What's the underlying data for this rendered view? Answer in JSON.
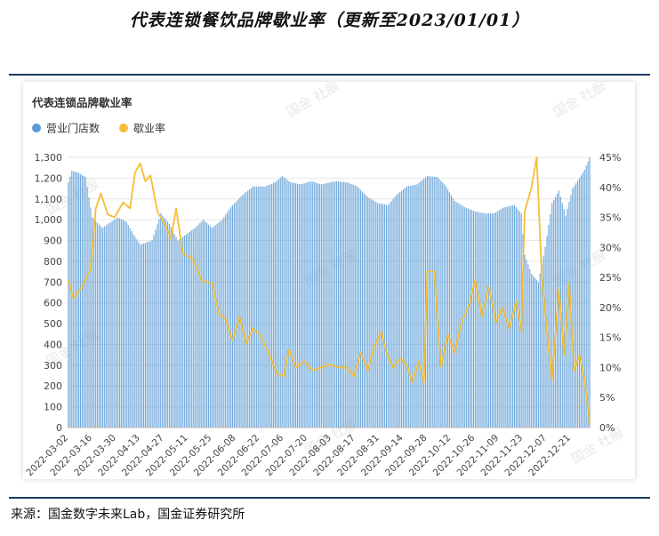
{
  "page": {
    "title": "代表连锁餐饮品牌歇业率（更新至2023/01/01）",
    "source": "来源：国金数字未来Lab，国金证券研究所",
    "watermark": "国金 社服"
  },
  "chart_data": {
    "type": "bar+line",
    "title": "代表连锁品牌歇业率",
    "legend_position": "top-left",
    "grid": true,
    "x": [
      "2022-03-02",
      "2022-03-03",
      "2022-03-04",
      "2022-03-05",
      "2022-03-06",
      "2022-03-07",
      "2022-03-08",
      "2022-03-09",
      "2022-03-10",
      "2022-03-11",
      "2022-03-12",
      "2022-03-13",
      "2022-03-14",
      "2022-03-15",
      "2022-03-16",
      "2022-03-17",
      "2022-03-18",
      "2022-03-19",
      "2022-03-20",
      "2022-03-21",
      "2022-03-22",
      "2022-03-23",
      "2022-03-24",
      "2022-03-25",
      "2022-03-26",
      "2022-03-27",
      "2022-03-28",
      "2022-03-29",
      "2022-03-30",
      "2022-03-31",
      "2022-04-01",
      "2022-04-02",
      "2022-04-03",
      "2022-04-04",
      "2022-04-05",
      "2022-04-06",
      "2022-04-07",
      "2022-04-08",
      "2022-04-09",
      "2022-04-10",
      "2022-04-11",
      "2022-04-12",
      "2022-04-13",
      "2022-04-14",
      "2022-04-15",
      "2022-04-16",
      "2022-04-17",
      "2022-04-18",
      "2022-04-19",
      "2022-04-20",
      "2022-04-21",
      "2022-04-22",
      "2022-04-23",
      "2022-04-24",
      "2022-04-25",
      "2022-04-26",
      "2022-04-27",
      "2022-04-28",
      "2022-04-29",
      "2022-04-30",
      "2022-05-01",
      "2022-05-02",
      "2022-05-03",
      "2022-05-04",
      "2022-05-05",
      "2022-05-06",
      "2022-05-07",
      "2022-05-08",
      "2022-05-09",
      "2022-05-10",
      "2022-05-11",
      "2022-05-12",
      "2022-05-13",
      "2022-05-14",
      "2022-05-15",
      "2022-05-16",
      "2022-05-17",
      "2022-05-18",
      "2022-05-19",
      "2022-05-20",
      "2022-05-21",
      "2022-05-22",
      "2022-05-23",
      "2022-05-24",
      "2022-05-25",
      "2022-05-26",
      "2022-05-27",
      "2022-05-28",
      "2022-05-29",
      "2022-05-30",
      "2022-05-31",
      "2022-06-01",
      "2022-06-02",
      "2022-06-03",
      "2022-06-04",
      "2022-06-05",
      "2022-06-06",
      "2022-06-07",
      "2022-06-08",
      "2022-06-09",
      "2022-06-10",
      "2022-06-11",
      "2022-06-12",
      "2022-06-13",
      "2022-06-14",
      "2022-06-15",
      "2022-06-16",
      "2022-06-17",
      "2022-06-18",
      "2022-06-19",
      "2022-06-20",
      "2022-06-21",
      "2022-06-22",
      "2022-06-23",
      "2022-06-24",
      "2022-06-25",
      "2022-06-26",
      "2022-06-27",
      "2022-06-28",
      "2022-06-29",
      "2022-06-30",
      "2022-07-01",
      "2022-07-02",
      "2022-07-03",
      "2022-07-04",
      "2022-07-05",
      "2022-07-06",
      "2022-07-07",
      "2022-07-08",
      "2022-07-09",
      "2022-07-10",
      "2022-07-11",
      "2022-07-12",
      "2022-07-13",
      "2022-07-14",
      "2022-07-15",
      "2022-07-16",
      "2022-07-17",
      "2022-07-18",
      "2022-07-19",
      "2022-07-20",
      "2022-07-21",
      "2022-07-22",
      "2022-07-23",
      "2022-07-24",
      "2022-07-25",
      "2022-07-26",
      "2022-07-27",
      "2022-07-28",
      "2022-07-29",
      "2022-07-30",
      "2022-07-31",
      "2022-08-01",
      "2022-08-02",
      "2022-08-03",
      "2022-08-04",
      "2022-08-05",
      "2022-08-06",
      "2022-08-07",
      "2022-08-08",
      "2022-08-09",
      "2022-08-10",
      "2022-08-11",
      "2022-08-12",
      "2022-08-13",
      "2022-08-14",
      "2022-08-15",
      "2022-08-16",
      "2022-08-17",
      "2022-08-18",
      "2022-08-19",
      "2022-08-20",
      "2022-08-21",
      "2022-08-22",
      "2022-08-23",
      "2022-08-24",
      "2022-08-25",
      "2022-08-26",
      "2022-08-27",
      "2022-08-28",
      "2022-08-29",
      "2022-08-30",
      "2022-08-31",
      "2022-09-01",
      "2022-09-02",
      "2022-09-03",
      "2022-09-04",
      "2022-09-05",
      "2022-09-06",
      "2022-09-07",
      "2022-09-08",
      "2022-09-09",
      "2022-09-10",
      "2022-09-11",
      "2022-09-12",
      "2022-09-13",
      "2022-09-14",
      "2022-09-15",
      "2022-09-16",
      "2022-09-17",
      "2022-09-18",
      "2022-09-19",
      "2022-09-20",
      "2022-09-21",
      "2022-09-22",
      "2022-09-23",
      "2022-09-24",
      "2022-09-25",
      "2022-09-26",
      "2022-09-27",
      "2022-09-28",
      "2022-09-29",
      "2022-09-30",
      "2022-10-01",
      "2022-10-02",
      "2022-10-03",
      "2022-10-04",
      "2022-10-05",
      "2022-10-06",
      "2022-10-07",
      "2022-10-08",
      "2022-10-09",
      "2022-10-10",
      "2022-10-11",
      "2022-10-12",
      "2022-10-13",
      "2022-10-14",
      "2022-10-15",
      "2022-10-16",
      "2022-10-17",
      "2022-10-18",
      "2022-10-19",
      "2022-10-20",
      "2022-10-21",
      "2022-10-22",
      "2022-10-23",
      "2022-10-24",
      "2022-10-25",
      "2022-10-26",
      "2022-10-27",
      "2022-10-28",
      "2022-10-29",
      "2022-10-30",
      "2022-10-31",
      "2022-11-01",
      "2022-11-02",
      "2022-11-03",
      "2022-11-04",
      "2022-11-05",
      "2022-11-06",
      "2022-11-07",
      "2022-11-08",
      "2022-11-09",
      "2022-11-10",
      "2022-11-11",
      "2022-11-12",
      "2022-11-13",
      "2022-11-14",
      "2022-11-15",
      "2022-11-16",
      "2022-11-17",
      "2022-11-18",
      "2022-11-19",
      "2022-11-20",
      "2022-11-21",
      "2022-11-22",
      "2022-11-23",
      "2022-11-24",
      "2022-11-25",
      "2022-11-26",
      "2022-11-27",
      "2022-11-28",
      "2022-11-29",
      "2022-11-30",
      "2022-12-01",
      "2022-12-02",
      "2022-12-03",
      "2022-12-04",
      "2022-12-05",
      "2022-12-06",
      "2022-12-07",
      "2022-12-08",
      "2022-12-09",
      "2022-12-10",
      "2022-12-11",
      "2022-12-12",
      "2022-12-13",
      "2022-12-14",
      "2022-12-15",
      "2022-12-16",
      "2022-12-17",
      "2022-12-18",
      "2022-12-19",
      "2022-12-20",
      "2022-12-21",
      "2022-12-22",
      "2022-12-23",
      "2022-12-24",
      "2022-12-25",
      "2022-12-26",
      "2022-12-27",
      "2022-12-28",
      "2022-12-29",
      "2022-12-30",
      "2022-12-31",
      "2023-01-01"
    ],
    "x_tick_labels": [
      "2022-03-02",
      "2022-03-16",
      "2022-03-30",
      "2022-04-13",
      "2022-04-27",
      "2022-05-11",
      "2022-05-25",
      "2022-06-08",
      "2022-06-22",
      "2022-07-06",
      "2022-07-20",
      "2022-08-03",
      "2022-08-17",
      "2022-08-31",
      "2022-09-14",
      "2022-09-28",
      "2022-10-12",
      "2022-10-26",
      "2022-11-09",
      "2022-11-23",
      "2022-12-07",
      "2022-12-21"
    ],
    "y_left": {
      "min": 0,
      "max": 1300,
      "step": 100,
      "tick_labels": [
        "0",
        "100",
        "200",
        "300",
        "400",
        "500",
        "600",
        "700",
        "800",
        "900",
        "1,000",
        "1,100",
        "1,200",
        "1,300"
      ]
    },
    "y_right": {
      "min": 0,
      "max": 0.45,
      "step": 0.05,
      "tick_labels": [
        "0%",
        "5%",
        "10%",
        "15%",
        "20%",
        "25%",
        "30%",
        "35%",
        "40%",
        "45%"
      ]
    },
    "series": [
      {
        "name": "营业门店数",
        "type": "bar",
        "axis": "left",
        "color": "#5b9bd5",
        "anchors": [
          [
            "2022-03-02",
            1180
          ],
          [
            "2022-03-04",
            1235
          ],
          [
            "2022-03-08",
            1225
          ],
          [
            "2022-03-12",
            1205
          ],
          [
            "2022-03-16",
            1010
          ],
          [
            "2022-03-22",
            960
          ],
          [
            "2022-03-27",
            990
          ],
          [
            "2022-03-31",
            1010
          ],
          [
            "2022-04-05",
            990
          ],
          [
            "2022-04-09",
            930
          ],
          [
            "2022-04-13",
            880
          ],
          [
            "2022-04-20",
            900
          ],
          [
            "2022-04-25",
            1030
          ],
          [
            "2022-04-30",
            980
          ],
          [
            "2022-05-05",
            900
          ],
          [
            "2022-05-10",
            930
          ],
          [
            "2022-05-15",
            960
          ],
          [
            "2022-05-20",
            1000
          ],
          [
            "2022-05-25",
            960
          ],
          [
            "2022-05-31",
            1000
          ],
          [
            "2022-06-05",
            1060
          ],
          [
            "2022-06-12",
            1120
          ],
          [
            "2022-06-18",
            1160
          ],
          [
            "2022-06-25",
            1160
          ],
          [
            "2022-07-01",
            1180
          ],
          [
            "2022-07-05",
            1210
          ],
          [
            "2022-07-10",
            1180
          ],
          [
            "2022-07-16",
            1170
          ],
          [
            "2022-07-22",
            1185
          ],
          [
            "2022-07-28",
            1170
          ],
          [
            "2022-08-05",
            1185
          ],
          [
            "2022-08-12",
            1180
          ],
          [
            "2022-08-18",
            1160
          ],
          [
            "2022-08-24",
            1110
          ],
          [
            "2022-08-30",
            1080
          ],
          [
            "2022-09-05",
            1070
          ],
          [
            "2022-09-10",
            1120
          ],
          [
            "2022-09-16",
            1160
          ],
          [
            "2022-09-22",
            1170
          ],
          [
            "2022-09-28",
            1210
          ],
          [
            "2022-10-04",
            1205
          ],
          [
            "2022-10-09",
            1160
          ],
          [
            "2022-10-14",
            1090
          ],
          [
            "2022-10-20",
            1060
          ],
          [
            "2022-10-26",
            1040
          ],
          [
            "2022-11-01",
            1030
          ],
          [
            "2022-11-06",
            1030
          ],
          [
            "2022-11-12",
            1060
          ],
          [
            "2022-11-18",
            1070
          ],
          [
            "2022-11-22",
            1030
          ],
          [
            "2022-11-24",
            830
          ],
          [
            "2022-11-28",
            740
          ],
          [
            "2022-12-02",
            700
          ],
          [
            "2022-12-06",
            870
          ],
          [
            "2022-12-10",
            1080
          ],
          [
            "2022-12-14",
            1140
          ],
          [
            "2022-12-18",
            1020
          ],
          [
            "2022-12-22",
            1150
          ],
          [
            "2022-12-26",
            1200
          ],
          [
            "2022-12-29",
            1240
          ],
          [
            "2023-01-01",
            1300
          ]
        ]
      },
      {
        "name": "歇业率",
        "type": "line",
        "axis": "right",
        "color": "#f6bd35",
        "anchors": [
          [
            "2022-03-02",
            0.245
          ],
          [
            "2022-03-05",
            0.215
          ],
          [
            "2022-03-10",
            0.235
          ],
          [
            "2022-03-15",
            0.265
          ],
          [
            "2022-03-18",
            0.365
          ],
          [
            "2022-03-21",
            0.39
          ],
          [
            "2022-03-25",
            0.355
          ],
          [
            "2022-03-29",
            0.35
          ],
          [
            "2022-04-03",
            0.375
          ],
          [
            "2022-04-07",
            0.365
          ],
          [
            "2022-04-10",
            0.425
          ],
          [
            "2022-04-13",
            0.44
          ],
          [
            "2022-04-16",
            0.41
          ],
          [
            "2022-04-19",
            0.42
          ],
          [
            "2022-04-23",
            0.36
          ],
          [
            "2022-04-27",
            0.34
          ],
          [
            "2022-05-01",
            0.315
          ],
          [
            "2022-05-04",
            0.365
          ],
          [
            "2022-05-08",
            0.29
          ],
          [
            "2022-05-14",
            0.28
          ],
          [
            "2022-05-19",
            0.245
          ],
          [
            "2022-05-25",
            0.24
          ],
          [
            "2022-05-29",
            0.19
          ],
          [
            "2022-06-02",
            0.18
          ],
          [
            "2022-06-06",
            0.145
          ],
          [
            "2022-06-10",
            0.185
          ],
          [
            "2022-06-14",
            0.14
          ],
          [
            "2022-06-18",
            0.165
          ],
          [
            "2022-06-22",
            0.155
          ],
          [
            "2022-06-27",
            0.125
          ],
          [
            "2022-07-02",
            0.09
          ],
          [
            "2022-07-06",
            0.085
          ],
          [
            "2022-07-09",
            0.13
          ],
          [
            "2022-07-13",
            0.1
          ],
          [
            "2022-07-18",
            0.11
          ],
          [
            "2022-07-23",
            0.095
          ],
          [
            "2022-07-28",
            0.1
          ],
          [
            "2022-08-02",
            0.105
          ],
          [
            "2022-08-07",
            0.1
          ],
          [
            "2022-08-12",
            0.1
          ],
          [
            "2022-08-16",
            0.085
          ],
          [
            "2022-08-20",
            0.125
          ],
          [
            "2022-08-24",
            0.095
          ],
          [
            "2022-08-28",
            0.135
          ],
          [
            "2022-09-01",
            0.16
          ],
          [
            "2022-09-04",
            0.125
          ],
          [
            "2022-09-08",
            0.1
          ],
          [
            "2022-09-12",
            0.115
          ],
          [
            "2022-09-16",
            0.105
          ],
          [
            "2022-09-19",
            0.075
          ],
          [
            "2022-09-23",
            0.11
          ],
          [
            "2022-09-26",
            0.075
          ],
          [
            "2022-09-28",
            0.26
          ],
          [
            "2022-10-02",
            0.26
          ],
          [
            "2022-10-06",
            0.1
          ],
          [
            "2022-10-10",
            0.155
          ],
          [
            "2022-10-14",
            0.125
          ],
          [
            "2022-10-18",
            0.175
          ],
          [
            "2022-10-22",
            0.2
          ],
          [
            "2022-10-26",
            0.245
          ],
          [
            "2022-10-30",
            0.185
          ],
          [
            "2022-11-03",
            0.235
          ],
          [
            "2022-11-07",
            0.175
          ],
          [
            "2022-11-11",
            0.2
          ],
          [
            "2022-11-15",
            0.165
          ],
          [
            "2022-11-19",
            0.21
          ],
          [
            "2022-11-22",
            0.16
          ],
          [
            "2022-11-24",
            0.36
          ],
          [
            "2022-11-28",
            0.4
          ],
          [
            "2022-12-01",
            0.45
          ],
          [
            "2022-12-04",
            0.25
          ],
          [
            "2022-12-07",
            0.16
          ],
          [
            "2022-12-10",
            0.08
          ],
          [
            "2022-12-14",
            0.23
          ],
          [
            "2022-12-17",
            0.12
          ],
          [
            "2022-12-20",
            0.24
          ],
          [
            "2022-12-23",
            0.095
          ],
          [
            "2022-12-26",
            0.12
          ],
          [
            "2022-12-29",
            0.08
          ],
          [
            "2023-01-01",
            0.005
          ]
        ]
      }
    ]
  }
}
